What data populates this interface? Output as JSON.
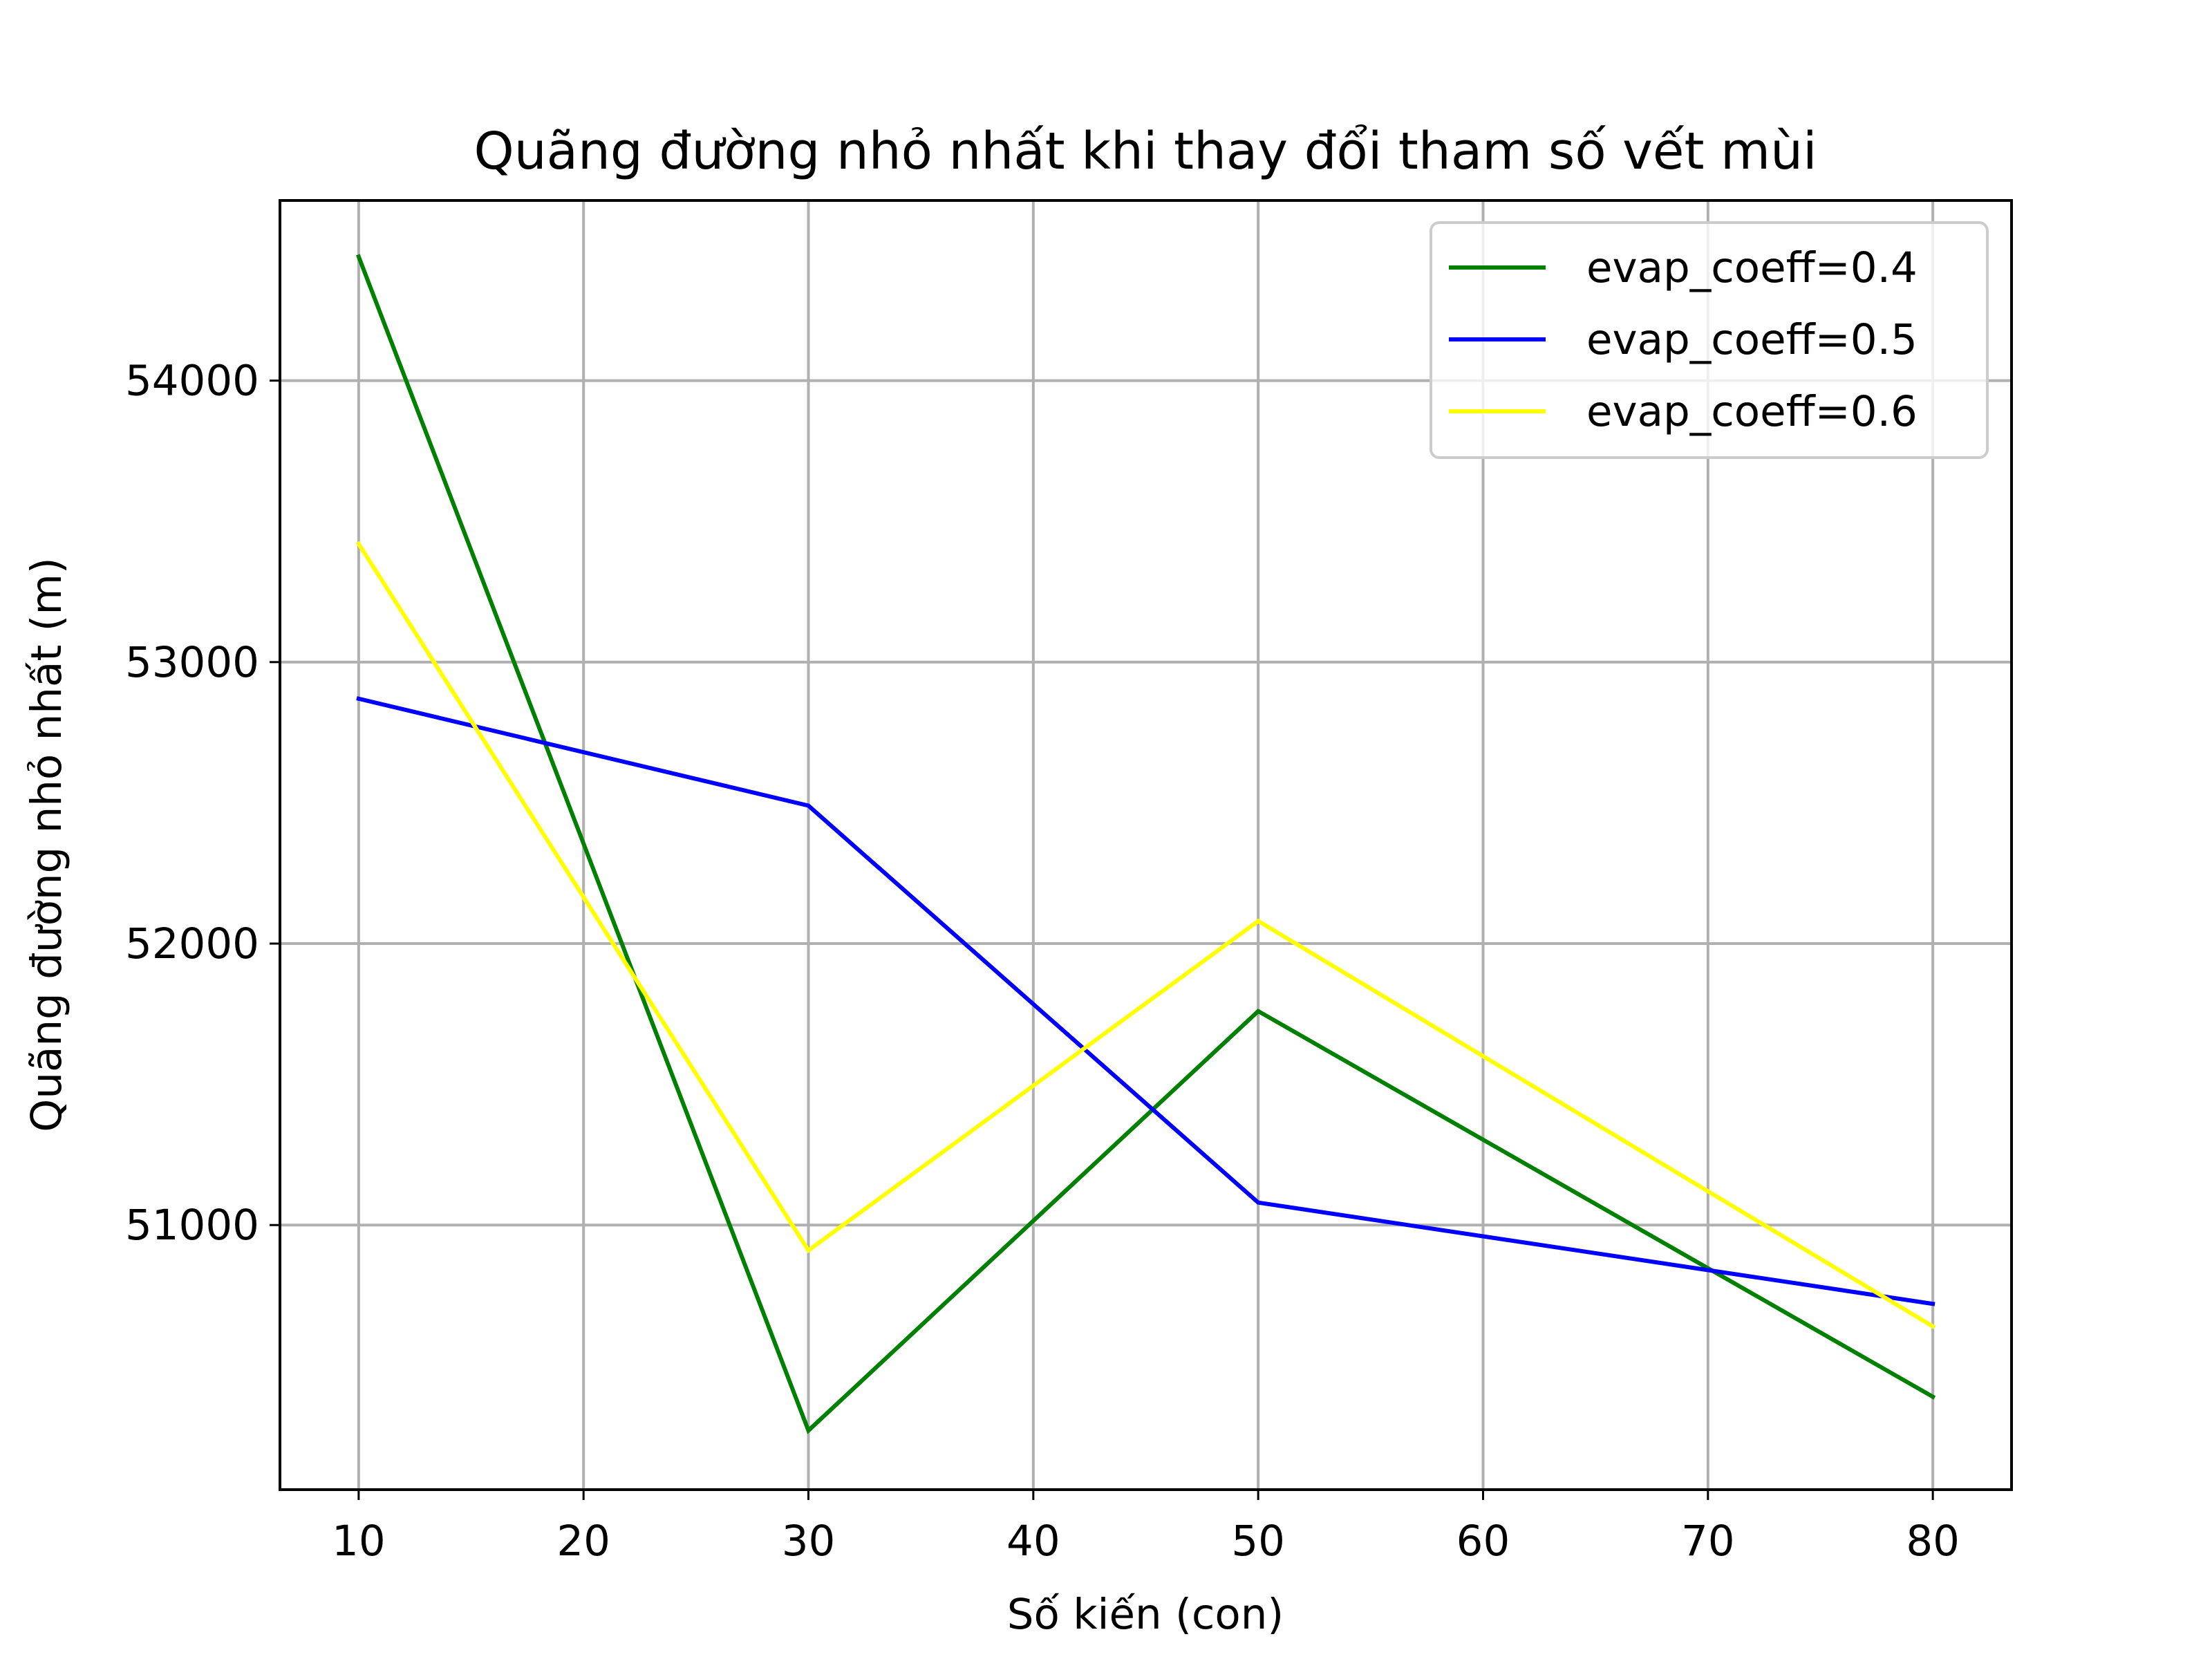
{
  "chart_data": {
    "type": "line",
    "title": "Quãng đường nhỏ nhất khi thay đổi tham số vết mùi",
    "xlabel": "Số kiến (con)",
    "ylabel": "Quãng đường nhỏ nhất (m)",
    "x": [
      10,
      30,
      50,
      80
    ],
    "xlim": [
      6.5,
      83.5
    ],
    "ylim": [
      50060,
      54640
    ],
    "xticks": [
      "10",
      "20",
      "30",
      "40",
      "50",
      "60",
      "70",
      "80"
    ],
    "yticks": [
      "51000",
      "52000",
      "53000",
      "54000"
    ],
    "grid": true,
    "legend_position": "top-right",
    "series": [
      {
        "name": "evap_coeff=0.4",
        "color": "#008000",
        "values": [
          54440,
          50270,
          51760,
          50390
        ]
      },
      {
        "name": "evap_coeff=0.5",
        "color": "#0000ff",
        "values": [
          52870,
          52490,
          51080,
          50720
        ]
      },
      {
        "name": "evap_coeff=0.6",
        "color": "#ffff00",
        "values": [
          53420,
          50910,
          52080,
          50640
        ]
      }
    ]
  }
}
